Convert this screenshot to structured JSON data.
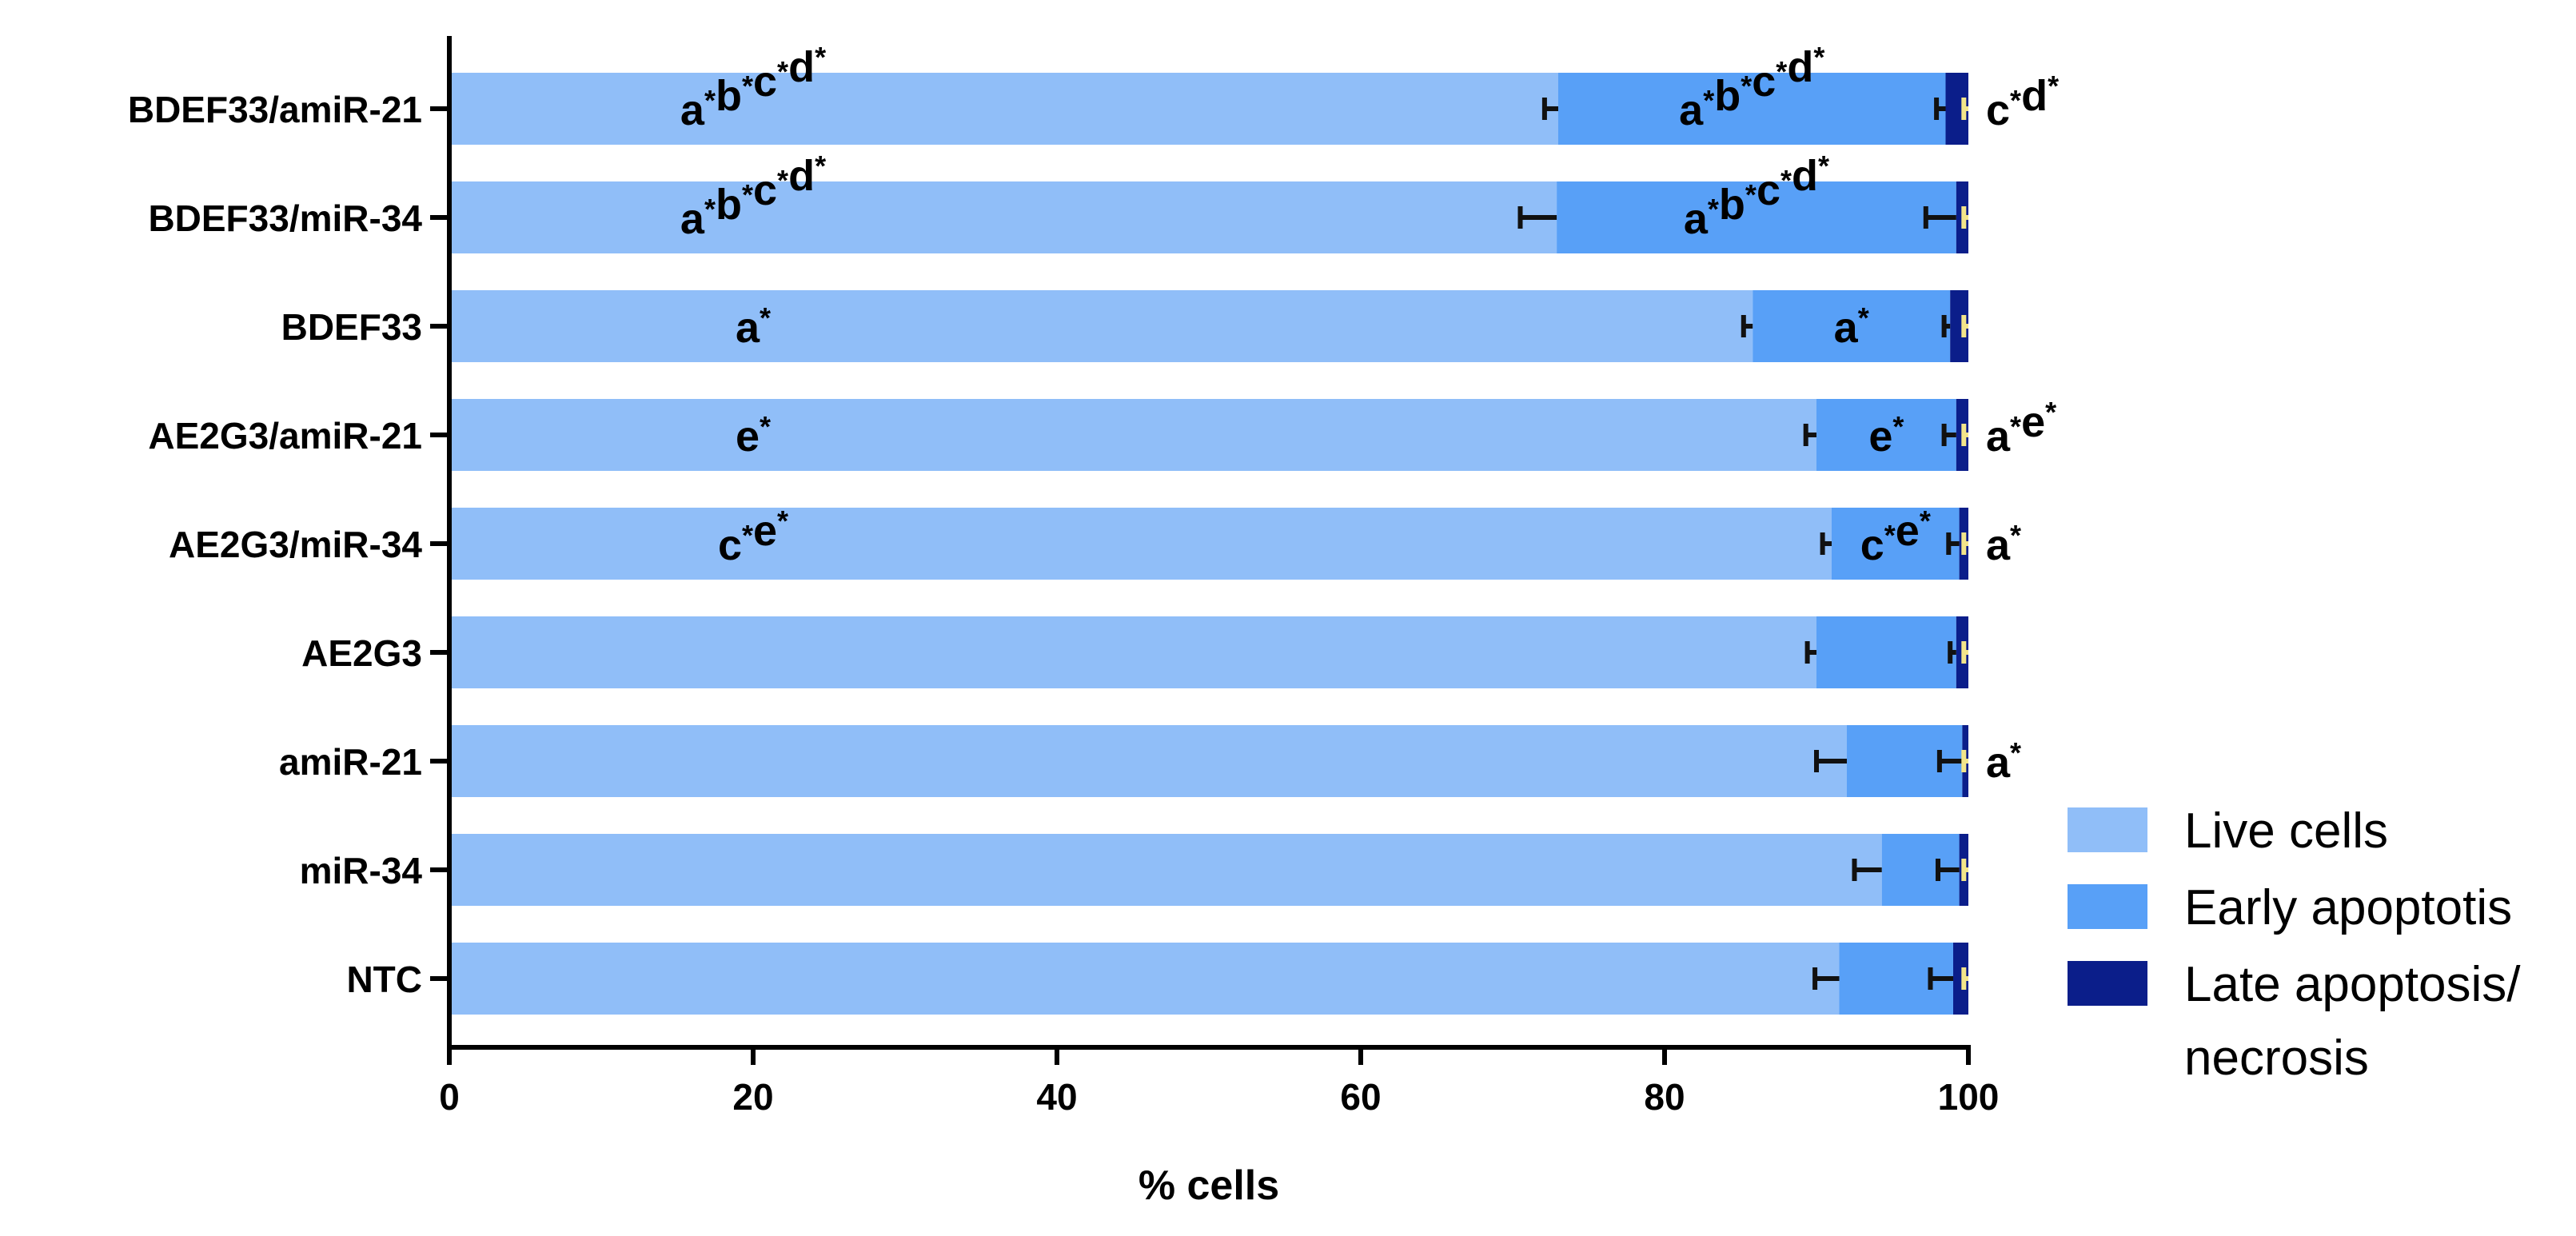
{
  "chart_data": {
    "type": "bar",
    "orientation": "horizontal",
    "stacked": true,
    "xlabel": "% cells",
    "ylabel": "",
    "xlim": [
      0,
      100
    ],
    "xticks": [
      "0",
      "20",
      "40",
      "60",
      "80",
      "100"
    ],
    "grid": false,
    "legend_position": "bottom-right",
    "categories": [
      "BDEF33/amiR-21",
      "BDEF33/miR-34",
      "BDEF33",
      "AE2G3/amiR-21",
      "AE2G3/miR-34",
      "AE2G3",
      "amiR-21",
      "miR-34",
      "NTC"
    ],
    "series": [
      {
        "name": "Live cells",
        "color": "#90BEF8",
        "values": [
          73.0,
          72.9,
          85.8,
          90.0,
          91.0,
          90.0,
          92.0,
          94.3,
          91.5
        ],
        "errors": [
          0.9,
          2.4,
          0.6,
          0.7,
          0.6,
          0.6,
          2.0,
          1.8,
          1.6
        ]
      },
      {
        "name": "Early apoptotis",
        "color": "#58A0F7",
        "values": [
          25.5,
          26.3,
          13.0,
          9.2,
          8.4,
          9.2,
          7.6,
          5.1,
          7.5
        ],
        "errors": [
          0.6,
          2.0,
          0.4,
          0.8,
          0.7,
          0.4,
          1.5,
          1.4,
          1.5
        ]
      },
      {
        "name": "Late apoptosis/ necrosis",
        "color": "#0B1E8A",
        "values": [
          1.5,
          0.8,
          1.2,
          0.8,
          0.6,
          0.8,
          0.4,
          0.6,
          1.0
        ],
        "errors": [
          0.3,
          0.3,
          0.3,
          0.3,
          0.3,
          0.3,
          0.3,
          0.3,
          0.3
        ]
      }
    ],
    "annotations": [
      {
        "category": "BDEF33/amiR-21",
        "series": "Live cells",
        "letters": [
          "a",
          "b",
          "c",
          "d"
        ]
      },
      {
        "category": "BDEF33/amiR-21",
        "series": "Early apoptotis",
        "letters": [
          "a",
          "b",
          "c",
          "d"
        ]
      },
      {
        "category": "BDEF33/amiR-21",
        "series": "Late apoptosis/ necrosis",
        "letters": [
          "c",
          "d"
        ]
      },
      {
        "category": "BDEF33/miR-34",
        "series": "Live cells",
        "letters": [
          "a",
          "b",
          "c",
          "d"
        ]
      },
      {
        "category": "BDEF33/miR-34",
        "series": "Early apoptotis",
        "letters": [
          "a",
          "b",
          "c",
          "d"
        ]
      },
      {
        "category": "BDEF33",
        "series": "Live cells",
        "letters": [
          "a"
        ]
      },
      {
        "category": "BDEF33",
        "series": "Early apoptotis",
        "letters": [
          "a"
        ]
      },
      {
        "category": "AE2G3/amiR-21",
        "series": "Live cells",
        "letters": [
          "e"
        ]
      },
      {
        "category": "AE2G3/amiR-21",
        "series": "Early apoptotis",
        "letters": [
          "e"
        ]
      },
      {
        "category": "AE2G3/amiR-21",
        "series": "Late apoptosis/ necrosis",
        "letters": [
          "a",
          "e"
        ]
      },
      {
        "category": "AE2G3/miR-34",
        "series": "Live cells",
        "letters": [
          "c",
          "e"
        ]
      },
      {
        "category": "AE2G3/miR-34",
        "series": "Early apoptotis",
        "letters": [
          "c",
          "e"
        ]
      },
      {
        "category": "AE2G3/miR-34",
        "series": "Late apoptosis/ necrosis",
        "letters": [
          "a"
        ]
      },
      {
        "category": "amiR-21",
        "series": "Late apoptosis/ necrosis",
        "letters": [
          "a"
        ]
      }
    ],
    "annotation_marker": "*"
  }
}
